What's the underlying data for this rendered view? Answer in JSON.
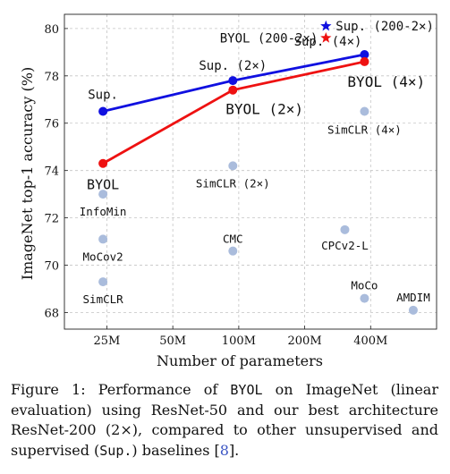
{
  "chart_data": {
    "type": "scatter",
    "xlabel": "Number of parameters",
    "ylabel": "ImageNet top-1 accuracy (%)",
    "x_scale": "log2",
    "x_ticks": [
      "25M",
      "50M",
      "100M",
      "200M",
      "400M"
    ],
    "x_tick_values": [
      25,
      50,
      100,
      200,
      400
    ],
    "xlim": [
      16,
      800
    ],
    "y_ticks": [
      68,
      70,
      72,
      74,
      76,
      78,
      80
    ],
    "ylim": [
      67.3,
      80.6
    ],
    "grid": true,
    "series": [
      {
        "name": "Sup.",
        "color": "#1010e0",
        "points": [
          {
            "x": 24,
            "y": 76.5,
            "label": "Sup."
          },
          {
            "x": 94,
            "y": 77.8,
            "label": "Sup. (2×)"
          },
          {
            "x": 375,
            "y": 78.9,
            "label": "Sup. (4×)"
          }
        ]
      },
      {
        "name": "BYOL",
        "color": "#ee1111",
        "points": [
          {
            "x": 24,
            "y": 74.3,
            "label": "BYOL"
          },
          {
            "x": 94,
            "y": 77.4,
            "label": "BYOL (2×)"
          },
          {
            "x": 375,
            "y": 78.6,
            "label": "BYOL (4×)"
          }
        ]
      }
    ],
    "stars": [
      {
        "x": 250,
        "y": 80.1,
        "label": "Sup. (200-2×)",
        "color": "#1010e0"
      },
      {
        "x": 250,
        "y": 79.6,
        "label": "BYOL (200-2×)",
        "color": "#ee1111"
      }
    ],
    "baselines": {
      "color": "#aabcdc",
      "points": [
        {
          "x": 24,
          "y": 73.0,
          "label": "InfoMin"
        },
        {
          "x": 24,
          "y": 71.1,
          "label": "MoCov2"
        },
        {
          "x": 24,
          "y": 69.3,
          "label": "SimCLR"
        },
        {
          "x": 94,
          "y": 74.2,
          "label": "SimCLR (2×)"
        },
        {
          "x": 94,
          "y": 70.6,
          "label": "CMC"
        },
        {
          "x": 305,
          "y": 71.5,
          "label": "CPCv2-L"
        },
        {
          "x": 375,
          "y": 76.5,
          "label": "SimCLR (4×)"
        },
        {
          "x": 375,
          "y": 68.6,
          "label": "MoCo"
        },
        {
          "x": 626,
          "y": 68.1,
          "label": "AMDIM"
        }
      ]
    }
  },
  "caption": {
    "prefix": "Figure 1: Performance of ",
    "byol": "BYOL",
    "mid": " on ImageNet (linear evaluation) using ResNet-50 and our best architecture ResNet-200 (2×), compared to other unsupervised and supervised (",
    "sup": "Sup.",
    "tail": ") baselines [",
    "ref": "8",
    "end": "]."
  }
}
